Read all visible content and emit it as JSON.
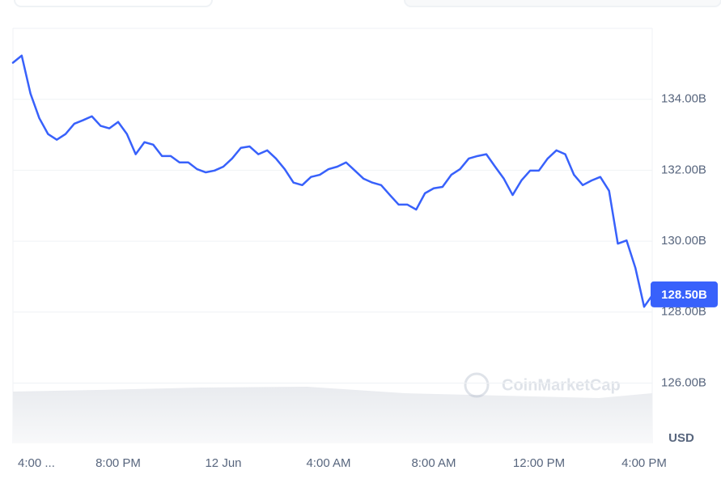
{
  "chart_data": {
    "type": "line",
    "color": "#3861fb",
    "currency_label": "USD",
    "watermark": "CoinMarketCap",
    "categories": [
      "4:00 ...",
      null,
      null,
      null,
      null,
      null,
      null,
      null,
      null,
      null,
      null,
      null,
      "8:00 PM",
      null,
      null,
      null,
      null,
      null,
      null,
      null,
      null,
      null,
      null,
      null,
      "12 Jun",
      null,
      null,
      null,
      null,
      null,
      null,
      null,
      null,
      null,
      null,
      null,
      "4:00 AM",
      null,
      null,
      null,
      null,
      null,
      null,
      null,
      null,
      null,
      null,
      null,
      "8:00 AM",
      null,
      null,
      null,
      null,
      null,
      null,
      null,
      null,
      null,
      null,
      null,
      "12:00 PM",
      null,
      null,
      null,
      null,
      null,
      null,
      null,
      null,
      null,
      null,
      null,
      "4:00 PM",
      null
    ],
    "values": [
      135.03,
      135.23,
      134.16,
      133.47,
      133.02,
      132.86,
      133.02,
      133.31,
      133.41,
      133.52,
      133.25,
      133.18,
      133.36,
      133.02,
      132.45,
      132.79,
      132.72,
      132.4,
      132.4,
      132.22,
      132.22,
      132.03,
      131.94,
      131.99,
      132.1,
      132.33,
      132.63,
      132.67,
      132.45,
      132.56,
      132.33,
      132.03,
      131.65,
      131.58,
      131.81,
      131.87,
      132.03,
      132.1,
      132.22,
      131.99,
      131.76,
      131.65,
      131.58,
      131.3,
      131.03,
      131.03,
      130.89,
      131.35,
      131.49,
      131.53,
      131.87,
      132.03,
      132.33,
      132.4,
      132.45,
      132.1,
      131.76,
      131.3,
      131.71,
      131.99,
      131.99,
      132.33,
      132.56,
      132.45,
      131.87,
      131.58,
      131.71,
      131.81,
      131.42,
      129.93,
      130.02,
      129.25,
      128.15,
      128.5
    ],
    "value_labels": [
      null,
      null,
      null,
      null,
      null,
      null,
      null,
      null,
      null,
      null,
      null,
      null,
      null,
      null,
      null,
      null,
      null,
      null,
      null,
      null,
      null,
      null,
      null,
      null,
      null,
      null,
      null,
      null,
      null,
      null,
      null,
      null,
      null,
      null,
      null,
      null,
      null,
      null,
      null,
      null,
      null,
      null,
      null,
      null,
      null,
      null,
      null,
      null,
      null,
      null,
      null,
      null,
      null,
      null,
      null,
      null,
      null,
      null,
      null,
      null,
      null,
      null,
      null,
      null,
      null,
      null,
      null,
      null,
      null,
      null,
      null,
      null,
      null,
      "128.50B"
    ],
    "ylim": [
      124.3,
      136
    ],
    "yticks": [
      {
        "value": 126,
        "label": "126.00B"
      },
      {
        "value": 128,
        "label": "128.00B"
      },
      {
        "value": 130,
        "label": "130.00B"
      },
      {
        "value": 132,
        "label": "132.00B"
      },
      {
        "value": 134,
        "label": "134.00B"
      }
    ],
    "grid": true
  }
}
